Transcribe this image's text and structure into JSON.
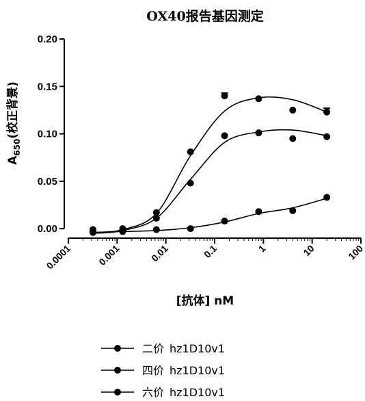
{
  "chart_data": {
    "type": "scatter",
    "title": "OX40报告基因测定",
    "xlabel": "[抗体] nM",
    "ylabel": "A650(校正背景)",
    "ylabel_main": "A",
    "ylabel_sub": "650",
    "ylabel_rest": "(校正背景)",
    "x_scale": "log",
    "xlim": [
      0.0001,
      100
    ],
    "ylim": [
      -0.01,
      0.2
    ],
    "x_ticks": [
      0.0001,
      0.001,
      0.01,
      0.1,
      1,
      10,
      100
    ],
    "x_tick_labels": [
      "0.0001",
      "0.001",
      "0.01",
      "0.1",
      "1",
      "10",
      "100"
    ],
    "y_ticks": [
      0,
      0.05,
      0.1,
      0.15,
      0.2
    ],
    "y_tick_labels": [
      "0.00",
      "0.05",
      "0.10",
      "0.15",
      "0.20"
    ],
    "grid": false,
    "legend_position": "bottom",
    "series": [
      {
        "name": "二价 hz1D10v1",
        "name_cn": "二价",
        "name_en": "hz1D10v1",
        "x": [
          0.00032,
          0.0013,
          0.0064,
          0.032,
          0.16,
          0.8,
          4,
          20
        ],
        "y": [
          -0.004,
          -0.003,
          -0.001,
          0.0,
          0.008,
          0.018,
          0.019,
          0.033
        ],
        "fit": [
          -0.004,
          -0.003,
          -0.002,
          0.001,
          0.007,
          0.016,
          0.022,
          0.032
        ]
      },
      {
        "name": "四价 hz1D10v1",
        "name_cn": "四价",
        "name_en": "hz1D10v1",
        "x": [
          0.00032,
          0.0013,
          0.0064,
          0.032,
          0.16,
          0.8,
          4,
          20
        ],
        "y": [
          -0.003,
          -0.002,
          0.011,
          0.048,
          0.098,
          0.101,
          0.095,
          0.097
        ],
        "fit": [
          -0.005,
          -0.002,
          0.011,
          0.052,
          0.091,
          0.102,
          0.104,
          0.098
        ]
      },
      {
        "name": "六价 hz1D10v1",
        "name_cn": "六价",
        "name_en": "hz1D10v1",
        "x": [
          0.00032,
          0.0013,
          0.0064,
          0.032,
          0.16,
          0.8,
          4,
          20
        ],
        "y": [
          -0.001,
          0.0,
          0.017,
          0.081,
          0.14,
          0.137,
          0.125,
          0.123
        ],
        "err": [
          0,
          0,
          0,
          0,
          0.003,
          0,
          0,
          0.004
        ],
        "fit": [
          -0.004,
          -0.001,
          0.016,
          0.077,
          0.124,
          0.138,
          0.136,
          0.123
        ]
      }
    ]
  }
}
